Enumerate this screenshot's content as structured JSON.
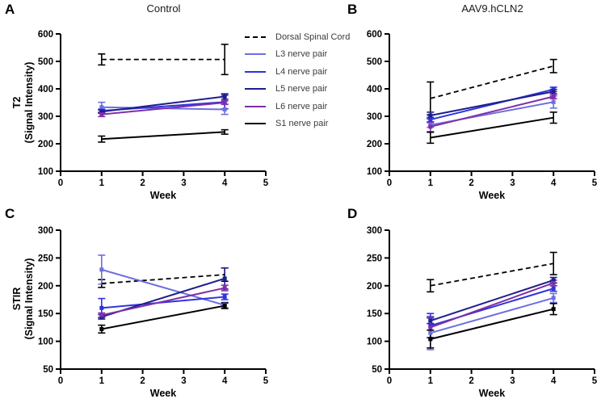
{
  "legend": {
    "items": [
      {
        "label": "Dorsal Spinal Cord",
        "color": "#000000",
        "dashed": true
      },
      {
        "label": "L3 nerve pair",
        "color": "#6E6EE2",
        "dashed": false
      },
      {
        "label": "L4 nerve pair",
        "color": "#3032DE",
        "dashed": false
      },
      {
        "label": "L5 nerve pair",
        "color": "#1E1E8C",
        "dashed": false
      },
      {
        "label": "L6 nerve pair",
        "color": "#7F2FA6",
        "dashed": false
      },
      {
        "label": "S1 nerve pair",
        "color": "#000000",
        "dashed": false
      }
    ]
  },
  "chart_data": [
    {
      "type": "line",
      "panel_label": "A",
      "title": "Control",
      "xlabel": "Week",
      "ylabel1": "T2",
      "ylabel2": "(Signal Intensity)",
      "x": [
        1,
        4
      ],
      "xlim": [
        0,
        5
      ],
      "xticks": [
        0,
        1,
        2,
        3,
        4,
        5
      ],
      "ylim": [
        100,
        600
      ],
      "yticks": [
        100,
        200,
        300,
        400,
        500,
        600
      ],
      "series": [
        {
          "name": "Dorsal Spinal Cord",
          "color": "#000000",
          "dashed": true,
          "marker": false,
          "values": [
            507,
            507
          ],
          "err": [
            20,
            55
          ]
        },
        {
          "name": "L3 nerve pair",
          "color": "#6E6EE2",
          "dashed": false,
          "marker": true,
          "values": [
            333,
            325
          ],
          "err": [
            18,
            18
          ]
        },
        {
          "name": "L4 nerve pair",
          "color": "#3032DE",
          "dashed": false,
          "marker": true,
          "values": [
            320,
            352
          ],
          "err": [
            6,
            25
          ]
        },
        {
          "name": "L5 nerve pair",
          "color": "#1E1E8C",
          "dashed": false,
          "marker": true,
          "values": [
            317,
            372
          ],
          "err": [
            6,
            10
          ]
        },
        {
          "name": "L6 nerve pair",
          "color": "#7F2FA6",
          "dashed": false,
          "marker": true,
          "values": [
            307,
            350
          ],
          "err": [
            8,
            6
          ]
        },
        {
          "name": "S1 nerve pair",
          "color": "#000000",
          "dashed": false,
          "marker": false,
          "values": [
            217,
            243
          ],
          "err": [
            11,
            8
          ]
        }
      ]
    },
    {
      "type": "line",
      "panel_label": "B",
      "title": "AAV9.hCLN2",
      "xlabel": "Week",
      "ylabel1": "",
      "ylabel2": "",
      "x": [
        1,
        4
      ],
      "xlim": [
        0,
        5
      ],
      "xticks": [
        0,
        1,
        2,
        3,
        4,
        5
      ],
      "ylim": [
        100,
        600
      ],
      "yticks": [
        100,
        200,
        300,
        400,
        500,
        600
      ],
      "series": [
        {
          "name": "Dorsal Spinal Cord",
          "color": "#000000",
          "dashed": true,
          "marker": false,
          "values": [
            365,
            483
          ],
          "err": [
            60,
            24
          ]
        },
        {
          "name": "L3 nerve pair",
          "color": "#6E6EE2",
          "dashed": false,
          "marker": true,
          "values": [
            268,
            352
          ],
          "err": [
            8,
            22
          ]
        },
        {
          "name": "L4 nerve pair",
          "color": "#3032DE",
          "dashed": false,
          "marker": true,
          "values": [
            288,
            398
          ],
          "err": [
            8,
            8
          ]
        },
        {
          "name": "L5 nerve pair",
          "color": "#1E1E8C",
          "dashed": false,
          "marker": true,
          "values": [
            303,
            390
          ],
          "err": [
            12,
            8
          ]
        },
        {
          "name": "L6 nerve pair",
          "color": "#7F2FA6",
          "dashed": false,
          "marker": true,
          "values": [
            262,
            372
          ],
          "err": [
            18,
            8
          ]
        },
        {
          "name": "S1 nerve pair",
          "color": "#000000",
          "dashed": false,
          "marker": false,
          "values": [
            222,
            295
          ],
          "err": [
            20,
            20
          ]
        }
      ]
    },
    {
      "type": "line",
      "panel_label": "C",
      "title": "",
      "xlabel": "Week",
      "ylabel1": "STIR",
      "ylabel2": "(Signal Intensity)",
      "x": [
        1,
        4
      ],
      "xlim": [
        0,
        5
      ],
      "xticks": [
        0,
        1,
        2,
        3,
        4,
        5
      ],
      "ylim": [
        50,
        300
      ],
      "yticks": [
        50,
        100,
        150,
        200,
        250,
        300
      ],
      "series": [
        {
          "name": "Dorsal Spinal Cord",
          "color": "#000000",
          "dashed": true,
          "marker": false,
          "values": [
            204,
            220
          ],
          "err": [
            7,
            12
          ]
        },
        {
          "name": "L3 nerve pair",
          "color": "#6E6EE2",
          "dashed": false,
          "marker": true,
          "values": [
            229,
            165
          ],
          "err": [
            26,
            5
          ]
        },
        {
          "name": "L4 nerve pair",
          "color": "#3032DE",
          "dashed": false,
          "marker": true,
          "values": [
            160,
            180
          ],
          "err": [
            17,
            5
          ]
        },
        {
          "name": "L5 nerve pair",
          "color": "#1E1E8C",
          "dashed": false,
          "marker": true,
          "values": [
            144,
            213
          ],
          "err": [
            4,
            19
          ]
        },
        {
          "name": "L6 nerve pair",
          "color": "#7F2FA6",
          "dashed": false,
          "marker": true,
          "values": [
            147,
            196
          ],
          "err": [
            4,
            5
          ]
        },
        {
          "name": "S1 nerve pair",
          "color": "#000000",
          "dashed": false,
          "marker": true,
          "values": [
            122,
            164
          ],
          "err": [
            7,
            5
          ]
        }
      ]
    },
    {
      "type": "line",
      "panel_label": "D",
      "title": "",
      "xlabel": "Week",
      "ylabel1": "",
      "ylabel2": "",
      "x": [
        1,
        4
      ],
      "xlim": [
        0,
        5
      ],
      "xticks": [
        0,
        1,
        2,
        3,
        4,
        5
      ],
      "ylim": [
        50,
        300
      ],
      "yticks": [
        50,
        100,
        150,
        200,
        250,
        300
      ],
      "series": [
        {
          "name": "Dorsal Spinal Cord",
          "color": "#000000",
          "dashed": true,
          "marker": false,
          "values": [
            200,
            240
          ],
          "err": [
            11,
            20
          ]
        },
        {
          "name": "L3 nerve pair",
          "color": "#6E6EE2",
          "dashed": false,
          "marker": true,
          "values": [
            115,
            178
          ],
          "err": [
            30,
            8
          ]
        },
        {
          "name": "L4 nerve pair",
          "color": "#3032DE",
          "dashed": false,
          "marker": true,
          "values": [
            128,
            195
          ],
          "err": [
            22,
            5
          ]
        },
        {
          "name": "L5 nerve pair",
          "color": "#1E1E8C",
          "dashed": false,
          "marker": true,
          "values": [
            137,
            210
          ],
          "err": [
            5,
            5
          ]
        },
        {
          "name": "L6 nerve pair",
          "color": "#7F2FA6",
          "dashed": false,
          "marker": true,
          "values": [
            125,
            205
          ],
          "err": [
            18,
            5
          ]
        },
        {
          "name": "S1 nerve pair",
          "color": "#000000",
          "dashed": false,
          "marker": true,
          "values": [
            104,
            158
          ],
          "err": [
            16,
            10
          ]
        }
      ]
    }
  ]
}
